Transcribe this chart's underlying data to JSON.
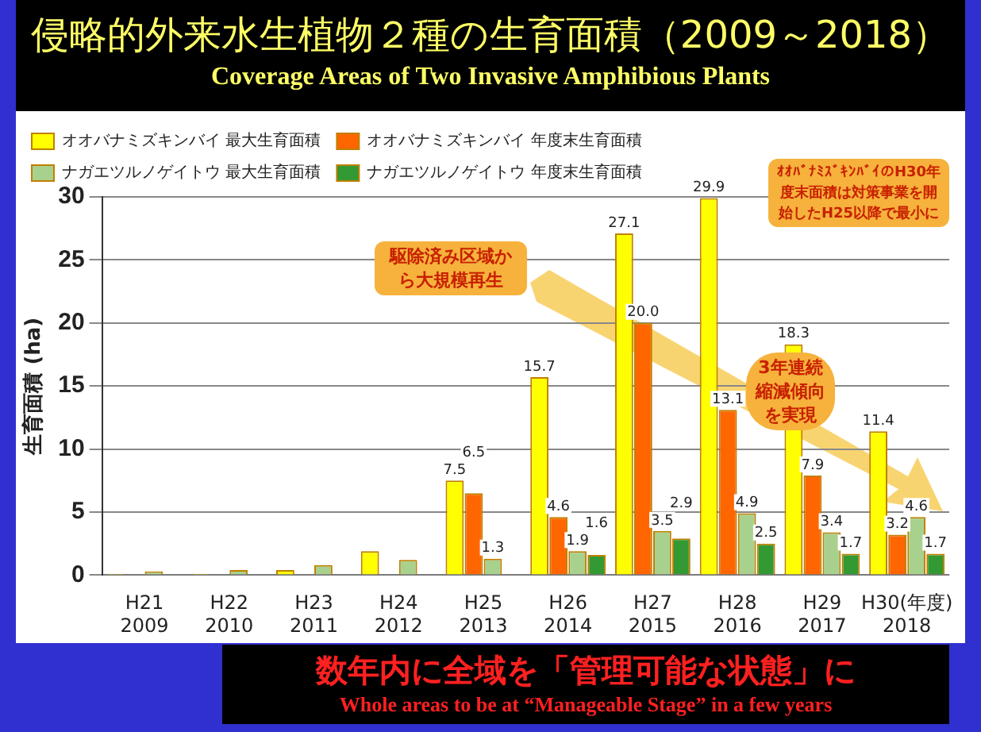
{
  "chart_data": {
    "type": "bar",
    "title": "侵略的外来水生植物２種の生育面積（2009～2018）",
    "subtitle": "Coverage Areas of Two Invasive Amphibious Plants",
    "ylabel": "生育面積 (ha)",
    "categories": [
      "H21\n2009",
      "H22\n2010",
      "H23\n2011",
      "H24\n2012",
      "H25\n2013",
      "H26\n2014",
      "H27\n2015",
      "H28\n2016",
      "H29\n2017",
      "H30(年度)\n2018"
    ],
    "series": [
      {
        "name": "オオバナミズキンバイ 最大生育面積",
        "color": "#ffff00",
        "values": [
          0.1,
          0.1,
          0.4,
          1.9,
          7.5,
          15.7,
          27.1,
          29.9,
          18.3,
          11.4
        ],
        "value_labels": [
          null,
          null,
          null,
          null,
          "7.5",
          "15.7",
          "27.1",
          "29.9",
          "18.3",
          "11.4"
        ]
      },
      {
        "name": "オオバナミズキンバイ 年度末生育面積",
        "color": "#ff6600",
        "values": [
          null,
          null,
          null,
          null,
          6.5,
          4.6,
          20.0,
          13.1,
          7.9,
          3.2
        ],
        "value_labels": [
          null,
          null,
          null,
          null,
          "6.5",
          "4.6",
          "20.0",
          "13.1",
          "7.9",
          "3.2"
        ]
      },
      {
        "name": "ナガエツルノゲイトウ 最大生育面積",
        "color": "#a9d18e",
        "values": [
          0.3,
          0.4,
          0.8,
          1.2,
          1.3,
          1.9,
          3.5,
          4.9,
          3.4,
          4.6
        ],
        "value_labels": [
          null,
          null,
          null,
          null,
          "1.3",
          "1.9",
          "3.5",
          "4.9",
          "3.4",
          "4.6"
        ]
      },
      {
        "name": "ナガエツルノゲイトウ 年度末生育面積",
        "color": "#339933",
        "values": [
          null,
          null,
          null,
          null,
          null,
          1.6,
          2.9,
          2.5,
          1.7,
          1.7
        ],
        "value_labels": [
          null,
          null,
          null,
          null,
          null,
          "1.6",
          "2.9",
          "2.5",
          "1.7",
          "1.7"
        ]
      }
    ],
    "ylim": [
      0,
      30
    ],
    "yticks": [
      0,
      5,
      10,
      15,
      20,
      25,
      30
    ],
    "grid": "y",
    "legend": "top left",
    "annotations": [
      "駆除済み区域から大規模再生",
      "3年連続縮減傾向を実現",
      "ｵｵﾊﾞﾅﾐｽﾞｷﾝﾊﾞｲのH30年度末面積は対策事業を開始したH25以降で最小に",
      "数年内に全域を「管理可能な状態」に",
      "Whole areas to be at “Manageable Stage” in a few years"
    ]
  }
}
